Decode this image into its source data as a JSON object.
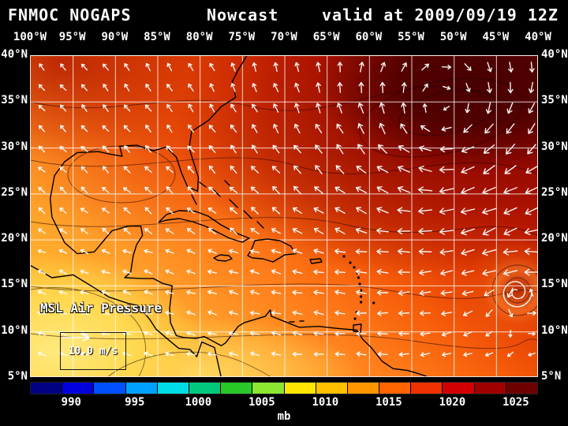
{
  "title": {
    "left": "FNMOC NOGAPS",
    "center": "Nowcast",
    "right": "valid at 2009/09/19 12Z"
  },
  "axes": {
    "lon_labels": [
      "100°W",
      "95°W",
      "90°W",
      "85°W",
      "80°W",
      "75°W",
      "70°W",
      "65°W",
      "60°W",
      "55°W",
      "50°W",
      "45°W",
      "40°W"
    ],
    "lat_labels": [
      "40°N",
      "35°N",
      "30°N",
      "25°N",
      "20°N",
      "15°N",
      "10°N",
      "5°N"
    ]
  },
  "map": {
    "field_label": "MSL Air Pressure",
    "wind_legend": "10.0 m/s"
  },
  "colorbar": {
    "unit": "mb",
    "ticks": [
      "990",
      "995",
      "1000",
      "1005",
      "1010",
      "1015",
      "1020",
      "1025"
    ],
    "colors": [
      "#000080",
      "#0000dc",
      "#0050ff",
      "#00a0ff",
      "#00dce6",
      "#00c87d",
      "#28c828",
      "#8ce632",
      "#ffe400",
      "#ffc000",
      "#ff9600",
      "#ff6400",
      "#f03200",
      "#d20000",
      "#a00000",
      "#6e0000"
    ]
  },
  "chart_data": {
    "type": "heatmap",
    "title": "MSL Air Pressure",
    "units": "mb",
    "colorbar_ticks": [
      990,
      995,
      1000,
      1005,
      1010,
      1015,
      1020,
      1025
    ],
    "lon_range": [
      "100°W",
      "40°W"
    ],
    "lat_range": [
      "5°N",
      "40°N"
    ],
    "wind_reference": "10.0 m/s",
    "legend_position": "bottom",
    "grid": true
  }
}
